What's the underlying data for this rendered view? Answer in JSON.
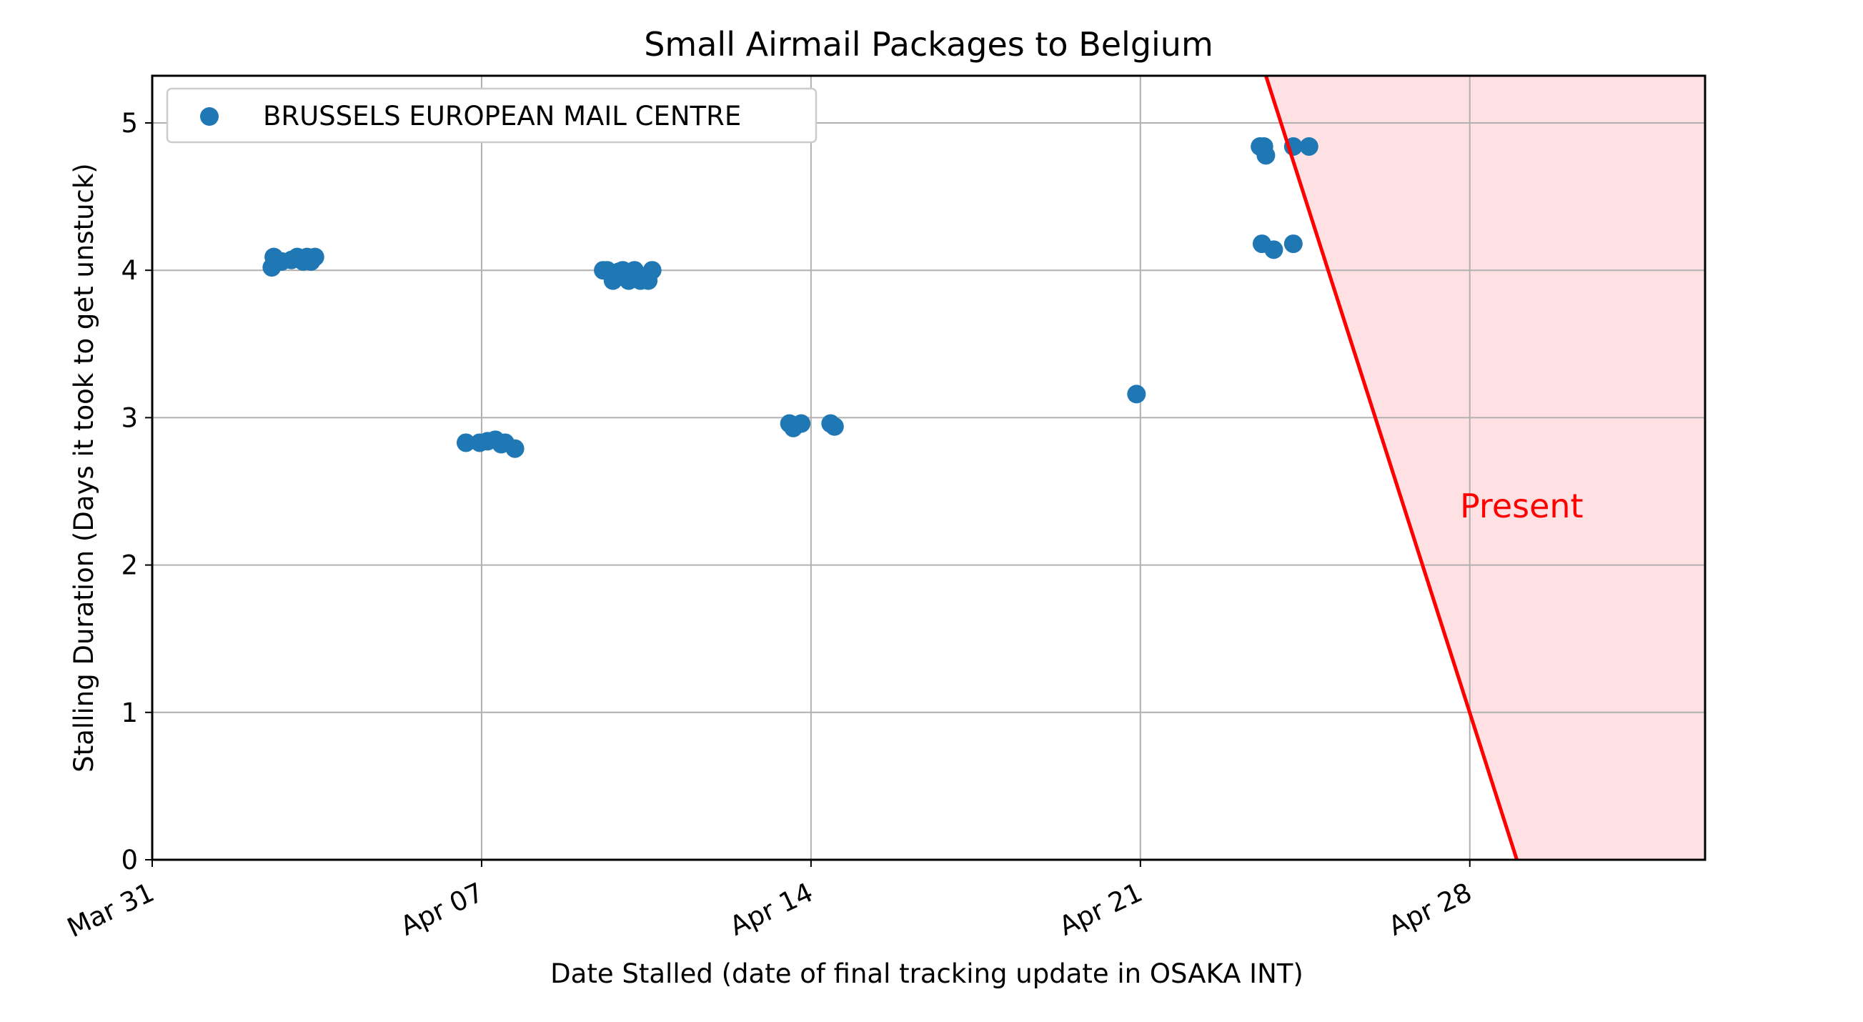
{
  "chart_data": {
    "type": "scatter",
    "title": "Small Airmail Packages to Belgium",
    "xlabel": "Date Stalled (date of final tracking update in OSAKA INT)",
    "ylabel": "Stalling Duration (Days it took to get unstuck)",
    "x_axis": {
      "type": "date",
      "min": "2025-03-31",
      "max": "2025-05-03",
      "ticks": [
        {
          "date": "2025-03-31",
          "label": "Mar 31"
        },
        {
          "date": "2025-04-07",
          "label": "Apr 07"
        },
        {
          "date": "2025-04-14",
          "label": "Apr 14"
        },
        {
          "date": "2025-04-21",
          "label": "Apr 21"
        },
        {
          "date": "2025-04-28",
          "label": "Apr 28"
        }
      ],
      "tick_label_rotation": "slanted"
    },
    "y_axis": {
      "min": 0,
      "max": 5.32,
      "ticks": [
        {
          "value": 0,
          "label": "0"
        },
        {
          "value": 1,
          "label": "1"
        },
        {
          "value": 2,
          "label": "2"
        },
        {
          "value": 3,
          "label": "3"
        },
        {
          "value": 4,
          "label": "4"
        },
        {
          "value": 5,
          "label": "5"
        }
      ]
    },
    "grid": true,
    "legend": {
      "placement": "top-left"
    },
    "colors": {
      "series": "#1f77b4",
      "present_line": "#ff0000",
      "present_fill": "#ffe0e3",
      "grid": "#b0b0b0"
    },
    "series": [
      {
        "name": "BRUSSELS EUROPEAN MAIL CENTRE",
        "points": [
          {
            "x": "2025-04-02 13:00",
            "y": 4.02
          },
          {
            "x": "2025-04-02 14:00",
            "y": 4.09
          },
          {
            "x": "2025-04-02 18:00",
            "y": 4.06
          },
          {
            "x": "2025-04-02 23:00",
            "y": 4.07
          },
          {
            "x": "2025-04-03 02:00",
            "y": 4.09
          },
          {
            "x": "2025-04-03 05:00",
            "y": 4.06
          },
          {
            "x": "2025-04-03 07:00",
            "y": 4.09
          },
          {
            "x": "2025-04-03 09:00",
            "y": 4.06
          },
          {
            "x": "2025-04-03 11:00",
            "y": 4.09
          },
          {
            "x": "2025-04-06 16:00",
            "y": 2.83
          },
          {
            "x": "2025-04-06 23:00",
            "y": 2.83
          },
          {
            "x": "2025-04-07 03:00",
            "y": 2.84
          },
          {
            "x": "2025-04-07 07:00",
            "y": 2.85
          },
          {
            "x": "2025-04-07 10:00",
            "y": 2.82
          },
          {
            "x": "2025-04-07 12:00",
            "y": 2.83
          },
          {
            "x": "2025-04-07 17:00",
            "y": 2.79
          },
          {
            "x": "2025-04-09 14:00",
            "y": 4.0
          },
          {
            "x": "2025-04-09 16:00",
            "y": 4.0
          },
          {
            "x": "2025-04-09 19:00",
            "y": 3.93
          },
          {
            "x": "2025-04-09 22:00",
            "y": 3.99
          },
          {
            "x": "2025-04-10 00:00",
            "y": 4.0
          },
          {
            "x": "2025-04-10 03:00",
            "y": 3.93
          },
          {
            "x": "2025-04-10 06:00",
            "y": 4.0
          },
          {
            "x": "2025-04-10 09:00",
            "y": 3.93
          },
          {
            "x": "2025-04-10 13:00",
            "y": 3.93
          },
          {
            "x": "2025-04-10 15:00",
            "y": 4.0
          },
          {
            "x": "2025-04-13 13:00",
            "y": 2.96
          },
          {
            "x": "2025-04-13 15:00",
            "y": 2.93
          },
          {
            "x": "2025-04-13 19:00",
            "y": 2.96
          },
          {
            "x": "2025-04-14 10:00",
            "y": 2.96
          },
          {
            "x": "2025-04-14 12:00",
            "y": 2.94
          },
          {
            "x": "2025-04-20 22:00",
            "y": 3.16
          },
          {
            "x": "2025-04-23 13:00",
            "y": 4.84
          },
          {
            "x": "2025-04-23 15:00",
            "y": 4.84
          },
          {
            "x": "2025-04-23 16:00",
            "y": 4.78
          },
          {
            "x": "2025-04-23 14:00",
            "y": 4.18
          },
          {
            "x": "2025-04-23 20:00",
            "y": 4.14
          },
          {
            "x": "2025-04-24 06:00",
            "y": 4.84
          },
          {
            "x": "2025-04-24 06:00",
            "y": 4.18
          },
          {
            "x": "2025-04-24 14:00",
            "y": 4.84
          }
        ]
      }
    ],
    "present_line": {
      "label": "Present",
      "points": [
        {
          "x": "2025-04-23 16:00",
          "y": 5.32
        },
        {
          "x": "2025-04-29 00:00",
          "y": 0
        }
      ]
    }
  }
}
